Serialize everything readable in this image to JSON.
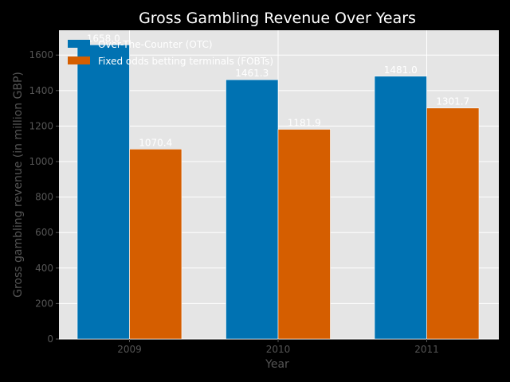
{
  "chart_data": {
    "type": "bar",
    "title": "Gross Gambling Revenue Over Years",
    "xlabel": "Year",
    "ylabel": "Gross gambling revenue (in million GBP)",
    "categories": [
      "2009",
      "2010",
      "2011"
    ],
    "series": [
      {
        "name": "Over-The-Counter (OTC)",
        "values": [
          1658.0,
          1461.3,
          1481.0
        ],
        "color": "#0072B2"
      },
      {
        "name": "Fixed odds betting terminals (FOBTs)",
        "values": [
          1070.4,
          1181.9,
          1301.7
        ],
        "color": "#D55E00"
      }
    ],
    "ylim": [
      0,
      1740
    ],
    "yticks": [
      0,
      200,
      400,
      600,
      800,
      1000,
      1200,
      1400,
      1600
    ],
    "grid": true,
    "legend_position": "top-left",
    "background": "#E5E5E5",
    "grid_color": "#FFFFFF"
  }
}
